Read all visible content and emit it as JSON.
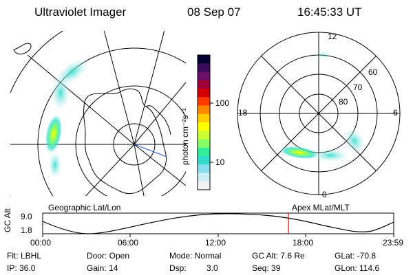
{
  "header": {
    "instrument": "Ultraviolet Imager",
    "date": "08 Sep 07",
    "time": "16:45:33 UT"
  },
  "left_panel": {
    "label": "Geographic Lat/Lon"
  },
  "right_panel": {
    "label": "Apex  MLat/MLT",
    "mlt_labels": {
      "top": "12",
      "left": "18",
      "right": "6",
      "bottom": "0"
    },
    "lat_labels": [
      "60",
      "70",
      "80"
    ]
  },
  "colorbar": {
    "unit_label": "photon cm⁻²s⁻¹",
    "ticks": [
      "100",
      "10"
    ],
    "colors": [
      "#000033",
      "#3a0a5a",
      "#6b0f6b",
      "#a0003a",
      "#d40000",
      "#ff3a00",
      "#ff8800",
      "#ffcc00",
      "#ffff00",
      "#ccff33",
      "#88ff66",
      "#33ee99",
      "#33ddcc",
      "#88ddee",
      "#cceef4",
      "#f2f2f2"
    ]
  },
  "timeline": {
    "ylabel": "GC Alt",
    "y_ticks": [
      "9.0",
      "1.8"
    ],
    "x_ticks": [
      "00:00",
      "06:00",
      "12:00",
      "18:00",
      "23:59"
    ],
    "current_time_fraction": 0.7
  },
  "status": {
    "flt": "Flt: LBHL",
    "door": "Door: Open",
    "mode": "Mode: Normal",
    "gc_alt": "GC Alt: 7.6 Re",
    "glat": "GLat: -70.8",
    "ip": "IP: 36.0",
    "gain": "Gain: 14",
    "dsp_label": "Dsp:",
    "dsp_value": "3.0",
    "seq": "Seq: 39",
    "glon": "GLon: 114.6"
  }
}
